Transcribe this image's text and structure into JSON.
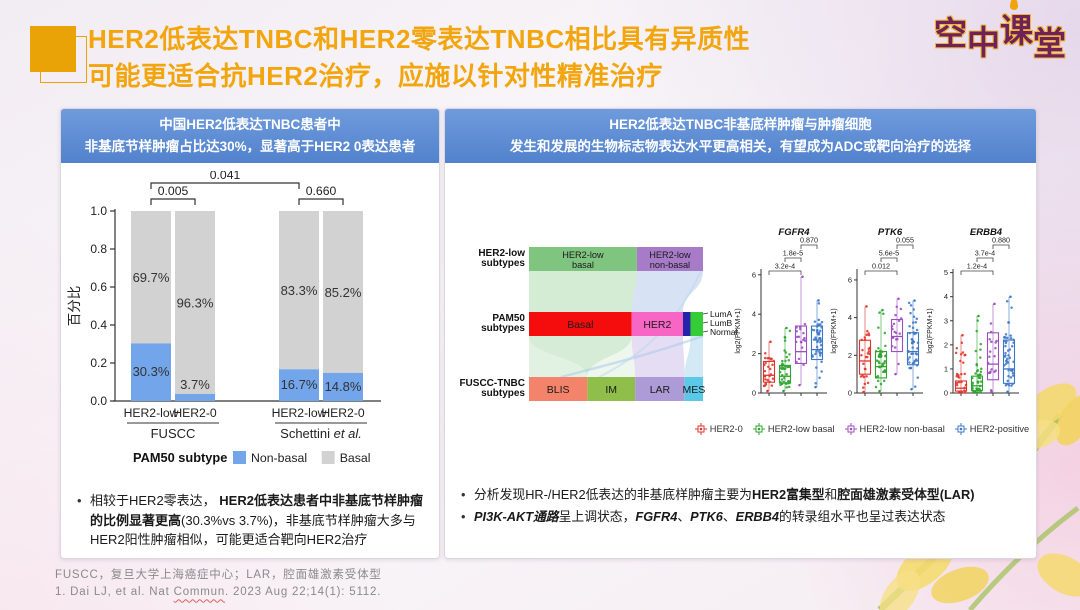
{
  "slide": {
    "title_line1": "HER2低表达TNBC和HER2零表达TNBC相比具有异质性",
    "title_line2": "可能更适合抗HER2治疗，应施以针对性精准治疗",
    "logo_text": "空中课堂",
    "footer_line1": "FUSCC，复旦大学上海癌症中心；LAR，腔面雄激素受体型",
    "footer_ref": {
      "prefix": "1. Dai LJ, et al. Nat ",
      "word": "Commun",
      "suffix": ". 2023 Aug 22;14(1): 5112."
    }
  },
  "left_panel": {
    "header_line1": "中国HER2低表达TNBC患者中",
    "header_line2": "非基底节样肿瘤占比达30%，显著高于HER2 0表达患者",
    "bullets": [
      [
        {
          "text": "相较于HER2零表达， "
        },
        {
          "text": "HER2低表达患者中非基底节样肿瘤的比例显著更高",
          "bold": true
        },
        {
          "text": "(30.3%vs 3.7%)，非基底节样肿瘤大多与HER2阳性肿瘤相似，可能更适合靶向HER2治疗"
        }
      ]
    ]
  },
  "right_panel": {
    "header_line1": "HER2低表达TNBC非基底样肿瘤与肿瘤细胞",
    "header_line2": "发生和发展的生物标志物表达水平更高相关，有望成为ADC或靶向治疗的选择",
    "bullets": [
      [
        {
          "text": "分析发现HR-/HER2低表达的非基底样肿瘤主要为"
        },
        {
          "text": "HER2富集型",
          "bold": true
        },
        {
          "text": "和"
        },
        {
          "text": "腔面雄激素受体型(LAR)",
          "bold": true
        }
      ],
      [
        {
          "text": "PI3K-AKT通路",
          "bold": true,
          "italic": true
        },
        {
          "text": "呈上调状态，"
        },
        {
          "text": "FGFR4",
          "bold": true,
          "italic": true
        },
        {
          "text": "、"
        },
        {
          "text": "PTK6",
          "bold": true,
          "italic": true
        },
        {
          "text": "、"
        },
        {
          "text": "ERBB4",
          "bold": true,
          "italic": true
        },
        {
          "text": "的转录组水平也呈过表达状态"
        }
      ]
    ]
  },
  "chart_data": [
    {
      "id": "pam50-stacked-bar",
      "type": "bar",
      "stacked": true,
      "ylabel": "百分比",
      "ylim": [
        0,
        1
      ],
      "yticks": [
        "0.0",
        "0.2",
        "0.4",
        "0.6",
        "0.8",
        "1.0"
      ],
      "bars": [
        {
          "label": "HER2-low",
          "group": "FUSCC",
          "non_basal": 30.3,
          "basal": 69.7,
          "non_basal_pct": "30.3%",
          "basal_pct": "69.7%"
        },
        {
          "label": "HER2-0",
          "group": "FUSCC",
          "non_basal": 3.7,
          "basal": 96.3,
          "non_basal_pct": "3.7%",
          "basal_pct": "96.3%"
        },
        {
          "label": "HER2-low",
          "group": "Schettini et al.",
          "non_basal": 16.7,
          "basal": 83.3,
          "non_basal_pct": "16.7%",
          "basal_pct": "83.3%"
        },
        {
          "label": "HER2-0",
          "group": "Schettini et al.",
          "non_basal": 14.8,
          "basal": 85.2,
          "non_basal_pct": "14.8%",
          "basal_pct": "85.2%"
        }
      ],
      "group_labels": [
        "FUSCC",
        "Schettini et al."
      ],
      "pvalues": [
        {
          "label": "0.005",
          "from": 0,
          "to": 1,
          "level": 1
        },
        {
          "label": "0.041",
          "from": 0,
          "to": 2,
          "level": 2
        },
        {
          "label": "0.660",
          "from": 2,
          "to": 3,
          "level": 1
        }
      ],
      "legend": {
        "title": "PAM50 subtype",
        "items": [
          {
            "label": "Non-basal",
            "color": "#72A5EA"
          },
          {
            "label": "Basal",
            "color": "#D2D2D2"
          }
        ]
      }
    },
    {
      "id": "subtype-sankey",
      "type": "sankey",
      "rows": [
        {
          "label_lines": [
            "HER2-low",
            "subtypes"
          ],
          "segments": [
            {
              "lines": [
                "HER2-low",
                "basal"
              ],
              "frac": 0.62,
              "color": "#7FC47F"
            },
            {
              "lines": [
                "HER2-low",
                "non-basal"
              ],
              "frac": 0.38,
              "color": "#A77BC8"
            }
          ]
        },
        {
          "label_lines": [
            "PAM50",
            "subtypes"
          ],
          "segments": [
            {
              "lines": [
                "Basal"
              ],
              "frac": 0.59,
              "color": "#F50D0D"
            },
            {
              "lines": [
                "HER2"
              ],
              "frac": 0.295,
              "color": "#F766C4"
            },
            {
              "lines": [],
              "frac": 0.043,
              "color": "#2424AC"
            },
            {
              "lines": [],
              "frac": 0.072,
              "color": "#35CC35"
            }
          ]
        },
        {
          "label_lines": [
            "FUSCC-TNBC",
            "subtypes"
          ],
          "segments": [
            {
              "lines": [
                "BLIS"
              ],
              "frac": 0.335,
              "color": "#F4836B"
            },
            {
              "lines": [
                "IM"
              ],
              "frac": 0.275,
              "color": "#8FBE4A"
            },
            {
              "lines": [
                "LAR"
              ],
              "frac": 0.285,
              "color": "#AC9BD6"
            },
            {
              "lines": [
                "MES"
              ],
              "frac": 0.105,
              "color": "#5BC8E8"
            }
          ]
        }
      ],
      "right_labels": [
        "LumA",
        "LumB",
        "Normal"
      ],
      "flows": [
        {
          "from": [
            0,
            0
          ],
          "to": [
            1,
            0
          ],
          "color": "#9ED49E",
          "opacity": 0.45
        },
        {
          "from": [
            0,
            1
          ],
          "to": [
            1,
            1
          ],
          "color": "#AFC6EC",
          "opacity": 0.5
        },
        {
          "from": [
            1,
            0
          ],
          "to": [
            2,
            0
          ],
          "color": "#9ED49E",
          "opacity": 0.3
        },
        {
          "from": [
            1,
            0
          ],
          "to": [
            2,
            1
          ],
          "color": "#9ED49E",
          "opacity": 0.18
        },
        {
          "from": [
            1,
            1
          ],
          "to": [
            2,
            2
          ],
          "color": "#C4B4E4",
          "opacity": 0.45
        },
        {
          "from": [
            1,
            3
          ],
          "to": [
            2,
            3
          ],
          "color": "#A8D4EE",
          "opacity": 0.5
        }
      ]
    },
    {
      "id": "expression-boxplots",
      "type": "scatter",
      "ylabel": "log2(FPKM+1)",
      "group_colors": [
        "#E0342B",
        "#2FA32F",
        "#9C4FC0",
        "#3C78C8"
      ],
      "plots": [
        {
          "title": "FGFR4",
          "ymax": 6.6,
          "yticks": [
            0,
            2,
            4,
            6
          ],
          "pvalues": [
            {
              "label": "3.2e-4",
              "from": 0,
              "to": 2,
              "level": 0
            },
            {
              "label": "1.8e-5",
              "from": 1,
              "to": 2,
              "level": 1
            },
            {
              "label": "0.870",
              "from": 2,
              "to": 3,
              "level": 2
            }
          ],
          "groups": [
            {
              "name": "HER2-0",
              "n": 26,
              "lo": 0.1,
              "q1": 0.55,
              "med": 0.9,
              "q3": 1.6,
              "hi": 2.6
            },
            {
              "name": "HER2-low basal",
              "n": 40,
              "lo": 0.1,
              "q1": 0.5,
              "med": 0.85,
              "q3": 1.4,
              "hi": 3.3
            },
            {
              "name": "HER2-low non-basal",
              "n": 18,
              "lo": 0.4,
              "q1": 1.5,
              "med": 2.1,
              "q3": 3.4,
              "hi": 5.9
            },
            {
              "name": "HER2-positive",
              "n": 46,
              "lo": 0.3,
              "q1": 1.7,
              "med": 2.2,
              "q3": 3.4,
              "hi": 4.7
            }
          ]
        },
        {
          "title": "PTK6",
          "ymax": 6.9,
          "yticks": [
            0,
            2,
            4,
            6
          ],
          "pvalues": [
            {
              "label": "0.012",
              "from": 0,
              "to": 2,
              "level": 0
            },
            {
              "label": "5.6e-5",
              "from": 1,
              "to": 2,
              "level": 1
            },
            {
              "label": "0.055",
              "from": 2,
              "to": 3,
              "level": 2
            }
          ],
          "groups": [
            {
              "name": "HER2-0",
              "n": 26,
              "lo": 0.05,
              "q1": 1.0,
              "med": 1.7,
              "q3": 2.8,
              "hi": 4.6
            },
            {
              "name": "HER2-low basal",
              "n": 40,
              "lo": 0.1,
              "q1": 0.8,
              "med": 1.4,
              "q3": 2.2,
              "hi": 4.4
            },
            {
              "name": "HER2-low non-basal",
              "n": 18,
              "lo": 1.0,
              "q1": 2.2,
              "med": 3.0,
              "q3": 3.9,
              "hi": 5.0
            },
            {
              "name": "HER2-positive",
              "n": 46,
              "lo": 0.2,
              "q1": 1.5,
              "med": 2.2,
              "q3": 3.2,
              "hi": 4.9
            }
          ]
        },
        {
          "title": "ERBB4",
          "ymax": 5.4,
          "yticks": [
            0,
            1,
            2,
            3,
            4,
            5
          ],
          "pvalues": [
            {
              "label": "1.2e-4",
              "from": 0,
              "to": 2,
              "level": 0
            },
            {
              "label": "3.7e-4",
              "from": 1,
              "to": 2,
              "level": 1
            },
            {
              "label": "0.880",
              "from": 2,
              "to": 3,
              "level": 2
            }
          ],
          "groups": [
            {
              "name": "HER2-0",
              "n": 26,
              "lo": 0.02,
              "q1": 0.08,
              "med": 0.2,
              "q3": 0.5,
              "hi": 2.4
            },
            {
              "name": "HER2-low basal",
              "n": 40,
              "lo": 0.02,
              "q1": 0.1,
              "med": 0.3,
              "q3": 0.7,
              "hi": 3.2
            },
            {
              "name": "HER2-low non-basal",
              "n": 18,
              "lo": 0.05,
              "q1": 0.55,
              "med": 1.2,
              "q3": 2.5,
              "hi": 3.7
            },
            {
              "name": "HER2-positive",
              "n": 46,
              "lo": 0.05,
              "q1": 0.4,
              "med": 1.0,
              "q3": 2.2,
              "hi": 4.0
            }
          ]
        }
      ],
      "legend": [
        {
          "label": "HER2-0",
          "color": "#E0342B"
        },
        {
          "label": "HER2-low basal",
          "color": "#2FA32F"
        },
        {
          "label": "HER2-low non-basal",
          "color": "#9C4FC0"
        },
        {
          "label": "HER2-positive",
          "color": "#3C78C8"
        }
      ]
    }
  ]
}
